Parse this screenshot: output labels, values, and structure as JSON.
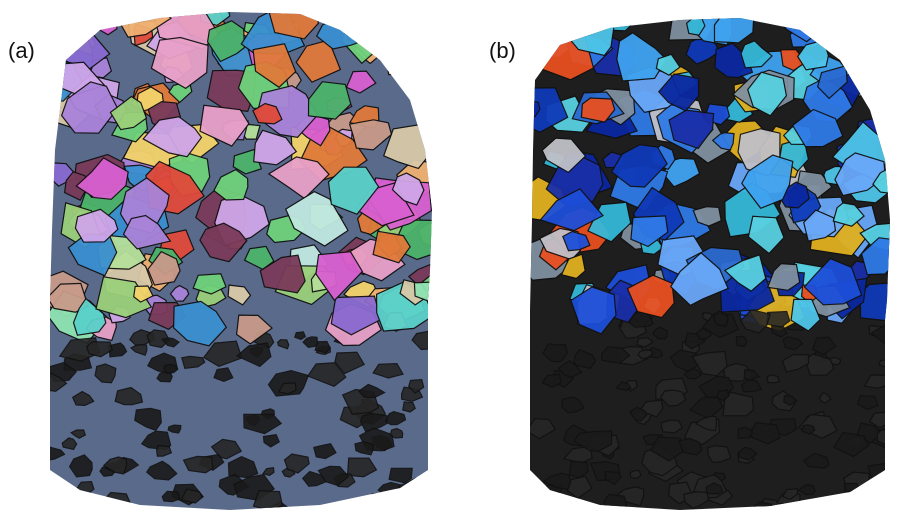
{
  "figure": {
    "panel_a": {
      "label": "(a)",
      "palette": [
        "#6fd27b",
        "#a983d8",
        "#d85fd0",
        "#8fe3b2",
        "#c89a8a",
        "#f3d36a",
        "#e07a3a",
        "#5ad0c9",
        "#9ad07a",
        "#d9c9a8",
        "#e8a0c8",
        "#7a3a5a",
        "#4cb36a",
        "#b6e09a",
        "#cfa6e8",
        "#f0b070",
        "#3a8fd0",
        "#e04a3a",
        "#c0e8e0",
        "#8a6ad0"
      ]
    },
    "panel_b": {
      "label": "(b)",
      "palette": [
        "#1d4fd8",
        "#2f7ae6",
        "#3fa3f0",
        "#4ec6e8",
        "#1a2fa8",
        "#6aa8f8",
        "#0f3ab8",
        "#35b8d8",
        "#e0b020",
        "#e85020",
        "#c0c0c8",
        "#8090a0",
        "#2a6ad0",
        "#58d0e0",
        "#0a28a0"
      ],
      "body_color": "#1e1e1e"
    }
  }
}
